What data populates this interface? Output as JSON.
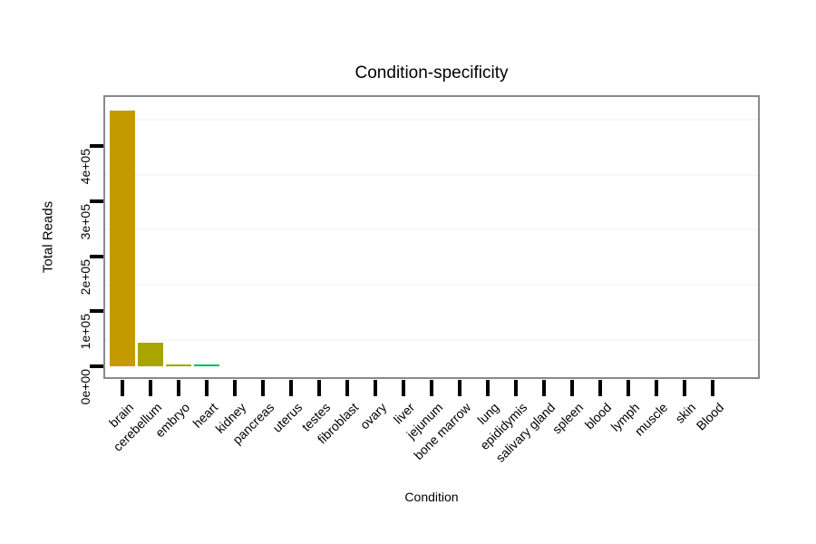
{
  "title": "Condition-specificity",
  "axes": {
    "x_label": "Condition",
    "y_label": "Total Reads",
    "y_tick_labels": [
      "0e+00",
      "1e+05",
      "2e+05",
      "3e+05",
      "4e+05"
    ]
  },
  "colors": {
    "background": "#ffffff",
    "panel_border": "#898989",
    "tick_mark": "#000000",
    "minor_gridline": "#f7f7f7",
    "brain_bar": "#C59900",
    "cerebellum_bar": "#A8A400",
    "embryo_bar": "#9EA900",
    "heart_bar": "#00BC5E"
  },
  "chart_data": {
    "type": "bar",
    "title": "Condition-specificity",
    "xlabel": "Condition",
    "ylabel": "Total Reads",
    "ylim": [
      0,
      491000
    ],
    "y_tick_values": [
      0,
      100000,
      200000,
      300000,
      400000
    ],
    "y_tick_labels": [
      "0e+00",
      "1e+05",
      "2e+05",
      "3e+05",
      "4e+05"
    ],
    "grid": "minor horizontal gridlines only, very faint",
    "legend_position": "none",
    "x_tick_label_angle": 45,
    "y_tick_label_angle": 90,
    "categories": [
      "brain",
      "cerebellum",
      "embryo",
      "heart",
      "kidney",
      "pancreas",
      "uterus",
      "testes",
      "fibroblast",
      "ovary",
      "liver",
      "jejunum",
      "bone marrow",
      "lung",
      "epididymis",
      "salivary gland",
      "spleen",
      "blood",
      "lymph",
      "muscle",
      "skin",
      "Blood"
    ],
    "values": [
      465000,
      43000,
      3000,
      2500,
      0,
      0,
      0,
      0,
      0,
      0,
      0,
      0,
      0,
      0,
      0,
      0,
      0,
      0,
      0,
      0,
      0,
      0
    ],
    "bar_colors": [
      "#C59900",
      "#A8A400",
      "#9EA900",
      "#00BC5E",
      null,
      null,
      null,
      null,
      null,
      null,
      null,
      null,
      null,
      null,
      null,
      null,
      null,
      null,
      null,
      null,
      null,
      null
    ]
  }
}
